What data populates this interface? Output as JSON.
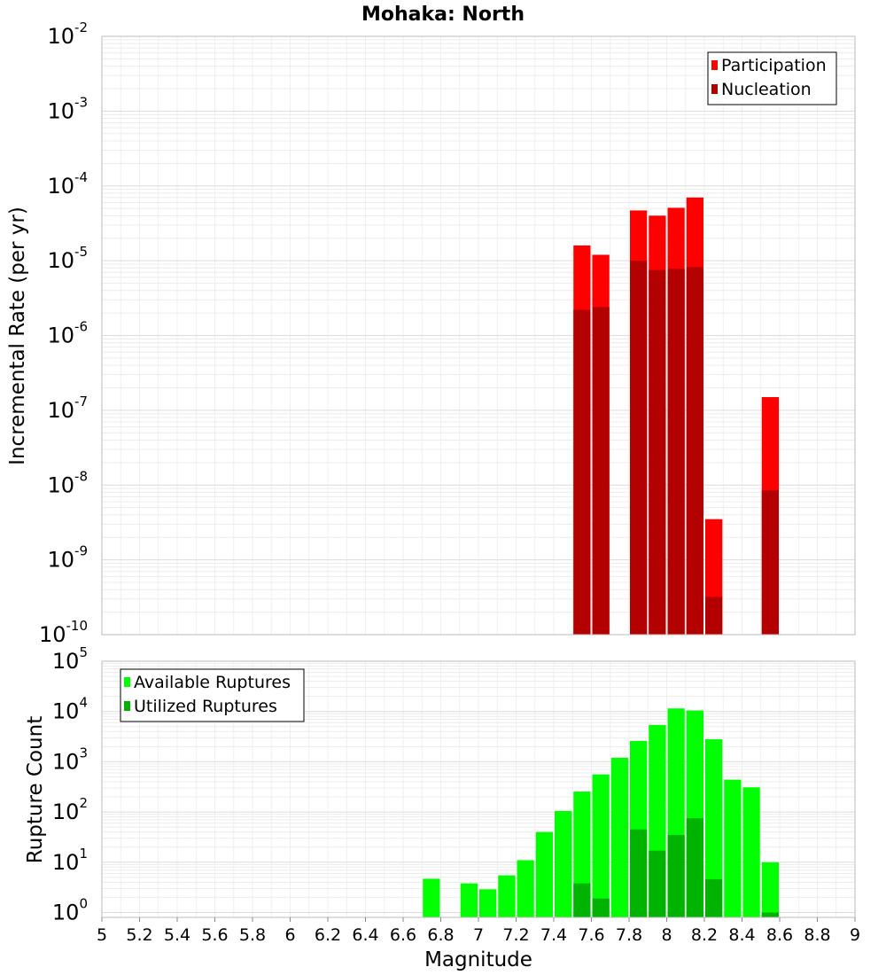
{
  "chart_data": [
    {
      "type": "bar",
      "title": "Mohaka: North",
      "xlabel": "",
      "ylabel": "Incremental Rate (per yr)",
      "yscale": "log",
      "ylim": [
        1e-10,
        0.01
      ],
      "xlim": [
        5,
        9
      ],
      "grid": true,
      "legend_position": "top-right",
      "x": [
        7.55,
        7.65,
        7.85,
        7.95,
        8.05,
        8.15,
        8.25,
        8.55
      ],
      "series": [
        {
          "name": "Participation",
          "color": "#ff0000",
          "values": [
            1.6e-05,
            1.2e-05,
            4.7e-05,
            4e-05,
            5.1e-05,
            7e-05,
            3.5e-09,
            1.5e-07
          ]
        },
        {
          "name": "Nucleation",
          "color": "#b30000",
          "values": [
            2.2e-06,
            2.4e-06,
            1e-05,
            7.5e-06,
            7.8e-06,
            8.2e-06,
            3.2e-10,
            8.5e-09
          ]
        }
      ]
    },
    {
      "type": "bar",
      "title": "",
      "xlabel": "Magnitude",
      "ylabel": "Rupture Count",
      "yscale": "log",
      "ylim": [
        0.8,
        100000.0
      ],
      "xlim": [
        5,
        9
      ],
      "grid": true,
      "legend_position": "top-left",
      "xticks": [
        "5",
        "5.2",
        "5.4",
        "5.6",
        "5.8",
        "6",
        "6.2",
        "6.4",
        "6.6",
        "6.8",
        "7",
        "7.2",
        "7.4",
        "7.6",
        "7.8",
        "8",
        "8.2",
        "8.4",
        "8.6",
        "8.8",
        "9"
      ],
      "x": [
        6.75,
        6.95,
        7.05,
        7.15,
        7.25,
        7.35,
        7.45,
        7.55,
        7.65,
        7.75,
        7.85,
        7.95,
        8.05,
        8.15,
        8.25,
        8.35,
        8.45,
        8.55
      ],
      "series": [
        {
          "name": "Available Ruptures",
          "color": "#00ff00",
          "values": [
            4.7,
            3.8,
            2.9,
            5.5,
            11,
            40,
            105,
            255,
            560,
            1200,
            2600,
            5400,
            11500,
            10500,
            2800,
            440,
            310,
            10
          ]
        },
        {
          "name": "Utilized Ruptures",
          "color": "#00b300",
          "values": [
            0,
            0,
            0,
            0,
            0,
            0,
            0,
            3.8,
            1.9,
            0,
            45,
            17,
            35,
            75,
            4.6,
            0,
            0,
            1.0
          ]
        }
      ]
    }
  ]
}
